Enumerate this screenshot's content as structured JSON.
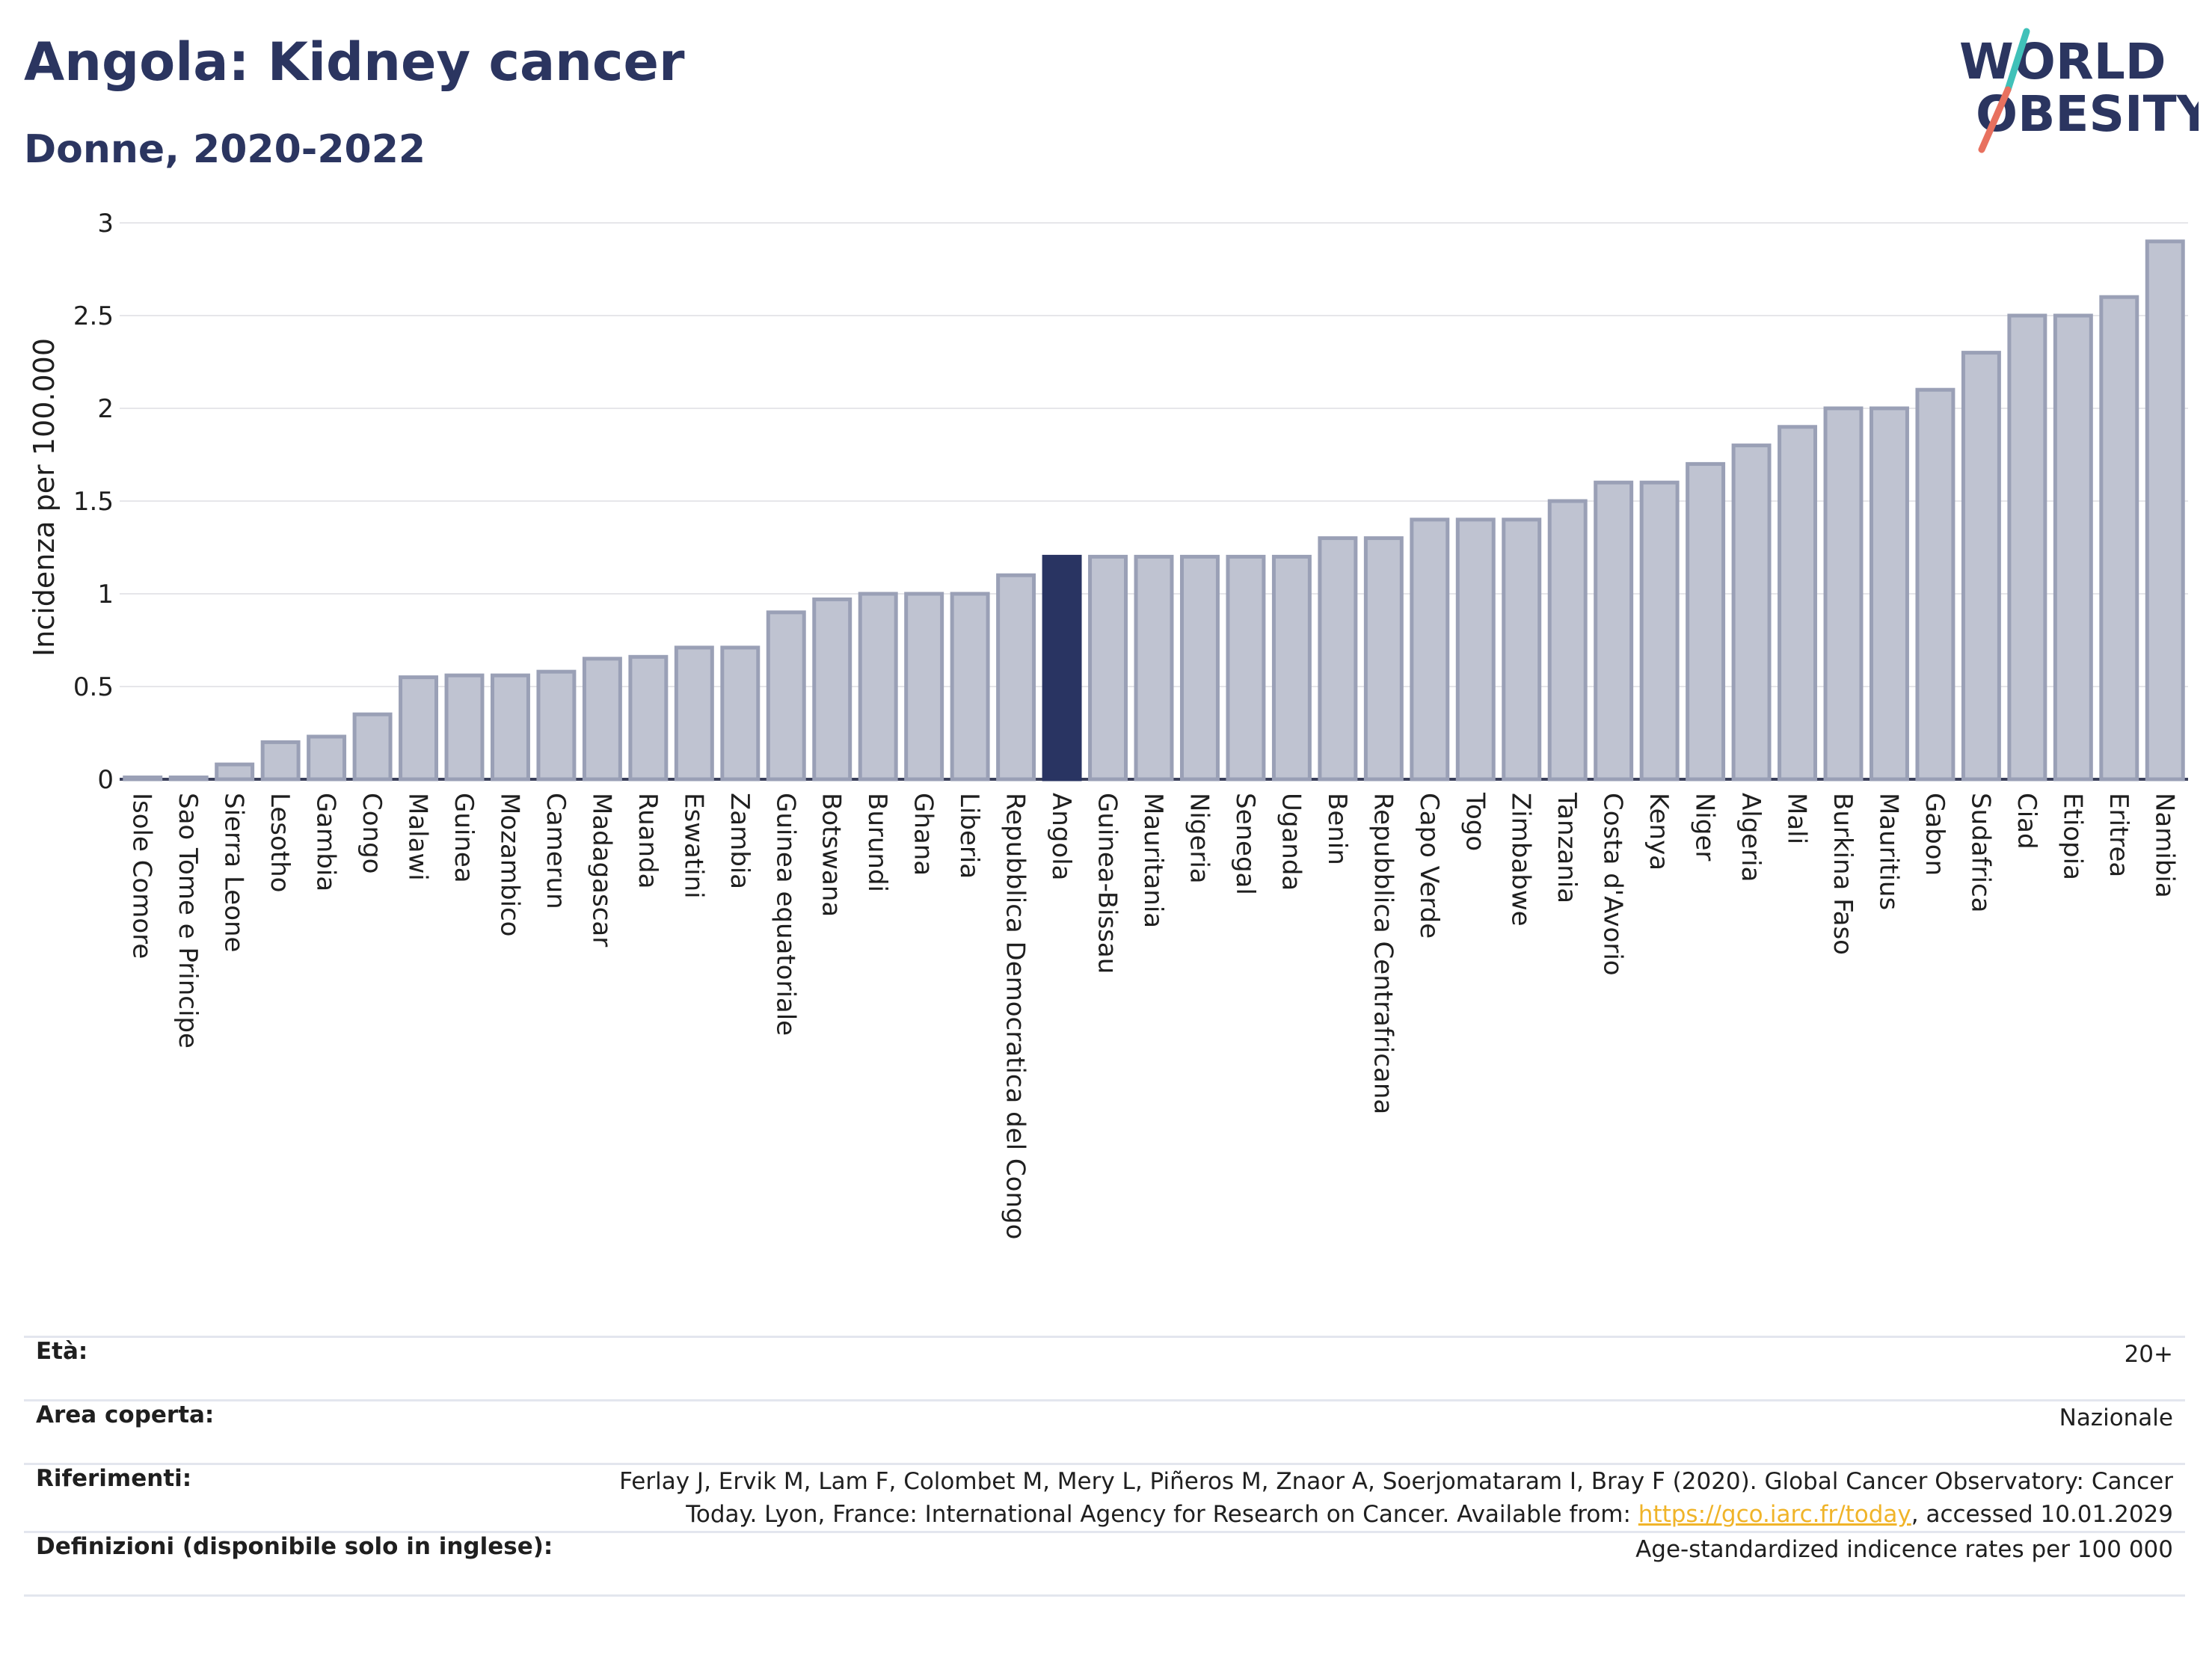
{
  "header": {
    "title": "Angola: Kidney cancer",
    "subtitle": "Donne, 2020-2022"
  },
  "logo": {
    "line1": "WORLD",
    "line2": "OBESITY",
    "accent_colors": [
      "#40c1b9",
      "#e8715f"
    ]
  },
  "colors": {
    "bar": "#bfc3d1",
    "bar_stroke": "#9aa0b6",
    "highlight": "#293462",
    "grid": "#e6e6ea",
    "text": "#2b3560"
  },
  "chart_data": {
    "type": "bar",
    "title": "Angola: Kidney cancer",
    "subtitle": "Donne, 2020-2022",
    "xlabel": "",
    "ylabel": "Incidenza per 100.000",
    "ylim": [
      0,
      3
    ],
    "yticks": [
      0,
      0.5,
      1,
      1.5,
      2,
      2.5,
      3
    ],
    "ytick_labels": [
      "0",
      "0.5",
      "1",
      "1.5",
      "2",
      "2.5",
      "3"
    ],
    "grid": true,
    "highlight_category": "Angola",
    "categories": [
      "Isole Comore",
      "Sao Tome e Principe",
      "Sierra Leone",
      "Lesotho",
      "Gambia",
      "Congo",
      "Malawi",
      "Guinea",
      "Mozambico",
      "Camerun",
      "Madagascar",
      "Ruanda",
      "Eswatini",
      "Zambia",
      "Guinea equatoriale",
      "Botswana",
      "Burundi",
      "Ghana",
      "Liberia",
      "Repubblica Democratica del Congo",
      "Angola",
      "Guinea-Bissau",
      "Mauritania",
      "Nigeria",
      "Senegal",
      "Uganda",
      "Benin",
      "Repubblica Centrafricana",
      "Capo Verde",
      "Togo",
      "Zimbabwe",
      "Tanzania",
      "Costa d'Avorio",
      "Kenya",
      "Niger",
      "Algeria",
      "Mali",
      "Burkina Faso",
      "Mauritius",
      "Gabon",
      "Sudafrica",
      "Ciad",
      "Etiopia",
      "Eritrea",
      "Namibia"
    ],
    "values": [
      0.01,
      0.01,
      0.08,
      0.2,
      0.23,
      0.35,
      0.55,
      0.56,
      0.56,
      0.58,
      0.65,
      0.66,
      0.71,
      0.71,
      0.9,
      0.97,
      1.0,
      1.0,
      1.0,
      1.1,
      1.2,
      1.2,
      1.2,
      1.2,
      1.2,
      1.2,
      1.3,
      1.3,
      1.4,
      1.4,
      1.4,
      1.5,
      1.6,
      1.6,
      1.7,
      1.8,
      1.9,
      2.0,
      2.0,
      2.1,
      2.3,
      2.5,
      2.5,
      2.6,
      2.9
    ]
  },
  "info": {
    "age_label": "Età:",
    "age_value": "20+",
    "area_label": "Area coperta:",
    "area_value": "Nazionale",
    "ref_label": "Riferimenti:",
    "ref_text_line1": "Ferlay J, Ervik M, Lam F, Colombet M, Mery L, Piñeros M, Znaor A, Soerjomataram I, Bray F (2020). Global Cancer Observatory: Cancer",
    "ref_text_line2_before": "Today. Lyon, France: International Agency for Research on Cancer. Available from: ",
    "ref_link": "https://gco.iarc.fr/today",
    "ref_text_line2_after": ", accessed 10.01.2029",
    "def_label": "Definizioni (disponibile solo in inglese):",
    "def_value": "Age-standardized indicence rates per 100 000"
  }
}
